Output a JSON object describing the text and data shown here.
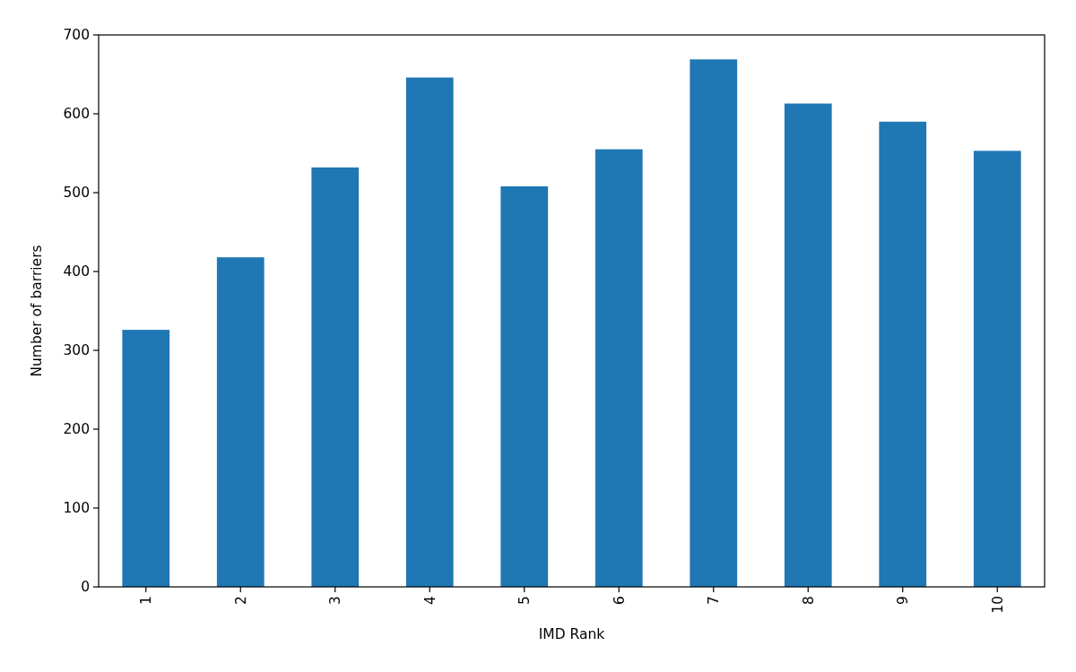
{
  "chart_data": {
    "type": "bar",
    "xlabel": "IMD Rank",
    "ylabel": "Number of barriers",
    "categories": [
      "1",
      "2",
      "3",
      "4",
      "5",
      "6",
      "7",
      "8",
      "9",
      "10"
    ],
    "values": [
      326,
      418,
      532,
      646,
      508,
      555,
      669,
      613,
      590,
      553
    ],
    "color": "#1f77b4",
    "ylim": [
      0,
      700
    ],
    "yticks": [
      0,
      100,
      200,
      300,
      400,
      500,
      600,
      700
    ]
  }
}
